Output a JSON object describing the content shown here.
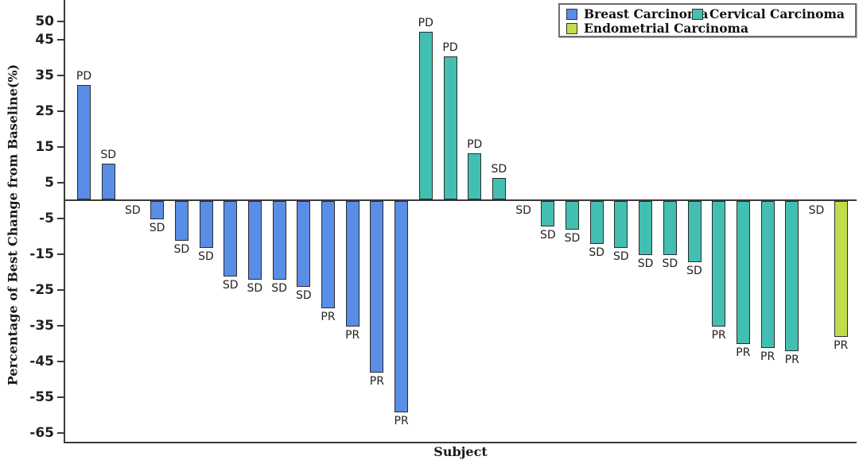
{
  "chart_data": {
    "type": "bar",
    "subtype": "waterfall-best-response",
    "title": "",
    "xlabel": "Subject",
    "ylabel": "Percentage of Best Change from Baseline(%)",
    "yticks": [
      50,
      45,
      35,
      25,
      15,
      5,
      -5,
      -15,
      -25,
      -35,
      -45,
      -55,
      -65
    ],
    "ylim": [
      -65,
      52
    ],
    "grid": false,
    "legend_position": "top-right",
    "axis_color": "#3a3a3a",
    "bar_border_color": "#2b2b2b",
    "series": [
      {
        "name": "Breast Carcinoma",
        "color": "#5a8de6",
        "values": [
          32,
          10,
          0,
          -5,
          -11,
          -13,
          -21,
          -22,
          -22,
          -24,
          -30,
          -35,
          -48,
          -59
        ],
        "labels": [
          "PD",
          "SD",
          "SD",
          "SD",
          "SD",
          "SD",
          "SD",
          "SD",
          "SD",
          "SD",
          "PR",
          "PR",
          "PR",
          "PR"
        ]
      },
      {
        "name": "Cervical Carcinoma",
        "color": "#43bfb2",
        "values": [
          47,
          40,
          13,
          6,
          0,
          -7,
          -8,
          -12,
          -13,
          -15,
          -15,
          -17,
          -35,
          -40,
          -41,
          -42
        ],
        "labels": [
          "PD",
          "PD",
          "PD",
          "SD",
          "SD",
          "SD",
          "SD",
          "SD",
          "SD",
          "SD",
          "SD",
          "SD",
          "PR",
          "PR",
          "PR",
          "PR"
        ]
      },
      {
        "name": "Endometrial Carcinoma",
        "color": "#c0dd4a",
        "values": [
          0,
          -38
        ],
        "labels": [
          "SD",
          "PR"
        ]
      }
    ]
  }
}
